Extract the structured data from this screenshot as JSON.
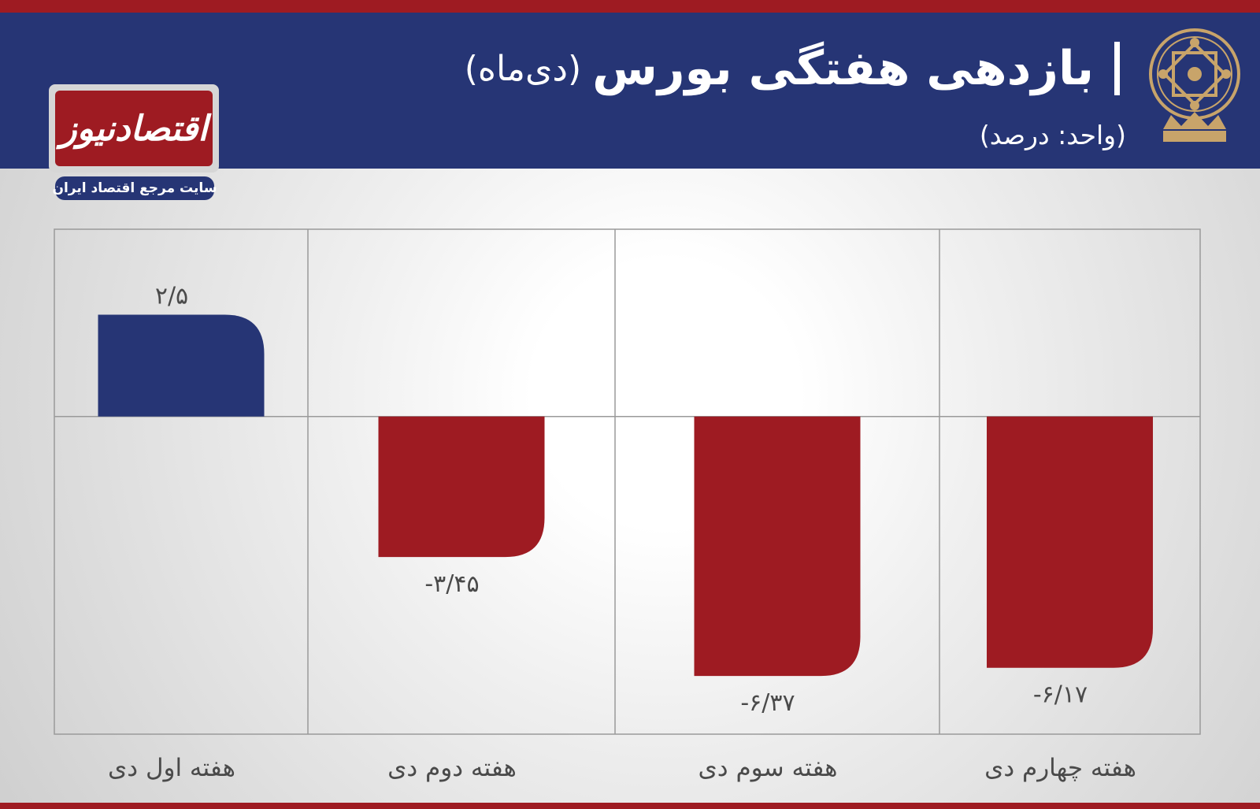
{
  "header": {
    "title": "بازدهی هفتگی بورس",
    "title_suffix": "(دی‌ماه)",
    "subtitle": "(واحد: درصد)"
  },
  "logo": {
    "name": "اقتصادنیوز",
    "tagline": "سایت مرجع اقتصاد ایران"
  },
  "colors": {
    "header_bg": "#263575",
    "positive": "#263575",
    "negative": "#9e1b22",
    "stripe": "#9e1b22"
  },
  "chart_data": {
    "type": "bar",
    "categories": [
      "هفته اول دی",
      "هفته دوم دی",
      "هفته سوم دی",
      "هفته چهارم دی"
    ],
    "values": [
      2.5,
      -3.45,
      -6.37,
      -6.17
    ],
    "value_labels": [
      "۲/۵",
      "-۳/۴۵",
      "-۶/۳۷",
      "-۶/۱۷"
    ],
    "title": "بازدهی هفتگی بورس (دی‌ماه)",
    "ylabel": "(واحد: درصد)",
    "ylim": [
      -7.8,
      4.6
    ],
    "grid": true,
    "legend": "none"
  }
}
